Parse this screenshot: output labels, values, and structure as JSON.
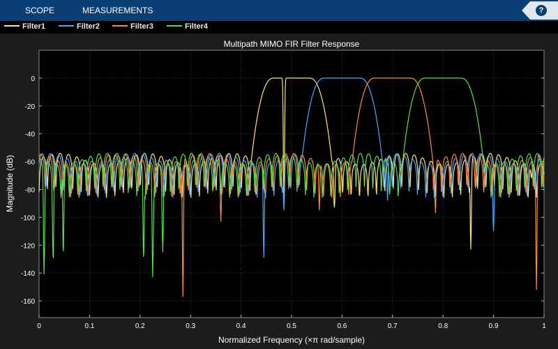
{
  "toolbar": {
    "tabs": [
      "SCOPE",
      "MEASUREMENTS"
    ],
    "help_label": "?"
  },
  "chart_data": {
    "type": "line",
    "title": "Multipath MIMO FIR Filter Response",
    "xlabel": "Normalized Frequency (×π rad/sample)",
    "ylabel": "Magnitude (dB)",
    "xlim": [
      0,
      1
    ],
    "ylim": [
      -172,
      20
    ],
    "x_ticks": [
      0,
      0.1,
      0.2,
      0.3,
      0.4,
      0.5,
      0.6,
      0.7,
      0.8,
      0.9,
      1
    ],
    "y_ticks": [
      0,
      -20,
      -40,
      -60,
      -80,
      -100,
      -120,
      -140,
      -160
    ],
    "grid": true,
    "legend_position": "top",
    "background": "#000000",
    "series": [
      {
        "name": "Filter1",
        "color": "#ffe680",
        "passband": [
          0.42,
          0.58
        ],
        "peak_db": 0,
        "sidelobe_db": -58,
        "deep_nulls": [
          [
            0.485,
            -94
          ],
          [
            0.585,
            -93
          ],
          [
            0.855,
            -123
          ],
          [
            0.975,
            -72
          ]
        ]
      },
      {
        "name": "Filter2",
        "color": "#4da6ff",
        "passband": [
          0.52,
          0.68
        ],
        "peak_db": 0,
        "sidelobe_db": -58,
        "deep_nulls": [
          [
            0.445,
            -129
          ],
          [
            0.485,
            -95
          ],
          [
            0.69,
            -88
          ],
          [
            0.9,
            -110
          ]
        ]
      },
      {
        "name": "Filter3",
        "color": "#ff8c3a",
        "passband": [
          0.62,
          0.78
        ],
        "peak_db": 0,
        "sidelobe_db": -58,
        "deep_nulls": [
          [
            0.285,
            -157
          ],
          [
            0.36,
            -103
          ],
          [
            0.555,
            -95
          ],
          [
            0.785,
            -97
          ],
          [
            0.985,
            -152
          ]
        ]
      },
      {
        "name": "Filter4",
        "color": "#59e04c",
        "passband": [
          0.72,
          0.88
        ],
        "peak_db": 0,
        "sidelobe_db": -58,
        "deep_nulls": [
          [
            0.01,
            -141
          ],
          [
            0.028,
            -132
          ],
          [
            0.048,
            -127
          ],
          [
            0.207,
            -131
          ],
          [
            0.225,
            -143
          ],
          [
            0.245,
            -125
          ]
        ]
      }
    ]
  }
}
